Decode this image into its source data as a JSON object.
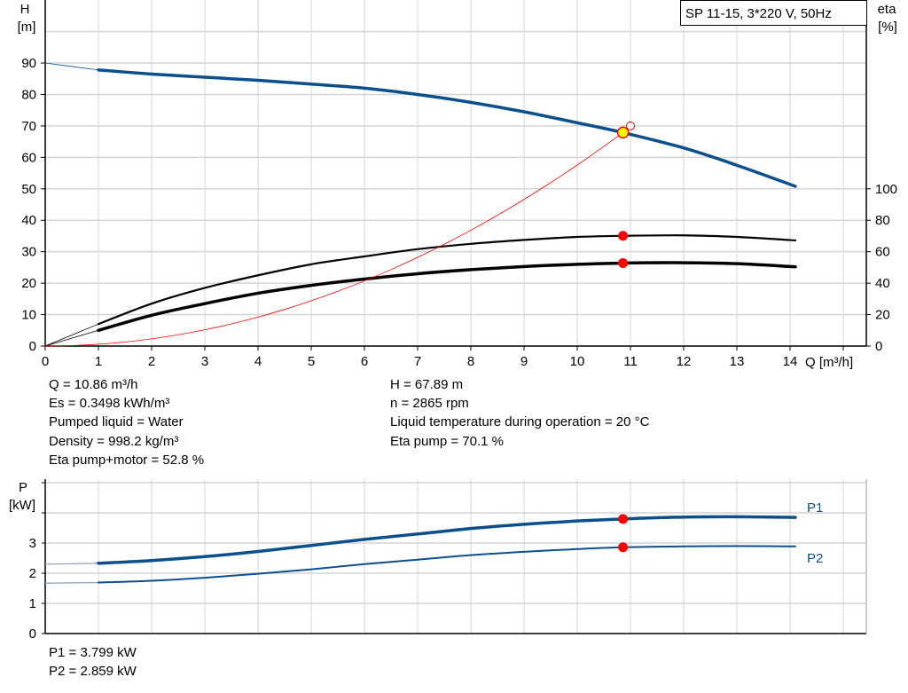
{
  "chart_data": [
    {
      "type": "line",
      "title": "SP 11-15, 3*220 V, 50Hz",
      "xlabel": "Q [m³/h]",
      "ylabel_left": [
        "H",
        "[m]"
      ],
      "ylabel_right": [
        "eta",
        "[%]"
      ],
      "xlim": [
        0,
        15.45
      ],
      "ylim_left": [
        0,
        110
      ],
      "ylim_right": [
        0,
        220
      ],
      "xticks": [
        "0",
        "1",
        "2",
        "3",
        "4",
        "5",
        "6",
        "7",
        "8",
        "9",
        "10",
        "11",
        "12",
        "13",
        "14"
      ],
      "yticks_left": [
        "0",
        "10",
        "20",
        "30",
        "40",
        "50",
        "60",
        "70",
        "80",
        "90"
      ],
      "yticks_right": [
        "0",
        "20",
        "40",
        "60",
        "80",
        "100"
      ],
      "grid": true,
      "series": [
        {
          "key": "H",
          "axis": "left",
          "color": "#0b4f8c",
          "x": [
            1,
            2,
            3,
            4,
            5,
            6,
            7,
            8,
            9,
            10,
            10.86,
            12,
            13,
            14.1
          ],
          "y": [
            87.8,
            86.5,
            85.5,
            84.5,
            83.3,
            82,
            80,
            77.5,
            74.5,
            71,
            67.89,
            63,
            57.5,
            50.8
          ],
          "extrapolated": {
            "x": [
              0,
              1
            ],
            "y": [
              90,
              87.8
            ]
          }
        },
        {
          "key": "eta_pump",
          "axis": "right",
          "color": "#000000",
          "x": [
            1,
            2,
            3,
            4,
            5,
            6,
            7,
            8,
            9,
            10,
            10.86,
            12,
            13,
            14.1
          ],
          "y": [
            14,
            27,
            37,
            45,
            52,
            57,
            61.6,
            65,
            67.5,
            69.4,
            70.1,
            70.4,
            69.4,
            67.2
          ],
          "extrapolated": {
            "x": [
              0,
              1
            ],
            "y": [
              0,
              14
            ]
          }
        },
        {
          "key": "eta_pump_motor",
          "axis": "right",
          "color": "#000000",
          "x": [
            1,
            2,
            3,
            4,
            5,
            6,
            7,
            8,
            9,
            10,
            10.86,
            12,
            13,
            14.1
          ],
          "y": [
            10,
            19.6,
            27,
            33.6,
            38.6,
            42.6,
            46,
            48.6,
            50.6,
            52,
            52.8,
            53,
            52.4,
            50.4
          ],
          "extrapolated": {
            "x": [
              0,
              1
            ],
            "y": [
              0,
              10
            ]
          }
        },
        {
          "key": "system_curve",
          "axis": "left",
          "color": "#ff0000",
          "type": "quadratic",
          "x": [
            0,
            10.86,
            11
          ],
          "y": [
            0,
            67.89,
            69.7
          ]
        }
      ],
      "duty_point": {
        "Q": 10.86,
        "H": 67.89,
        "eta_pump": 70.1,
        "eta_pump_motor": 52.8
      },
      "requested_point": {
        "Q": 11,
        "H": 70
      }
    },
    {
      "type": "line",
      "ylabel_left": [
        "P",
        "[kW]"
      ],
      "xlim": [
        0,
        15.45
      ],
      "ylim": [
        0,
        5.1
      ],
      "yticks": [
        "0",
        "1",
        "2",
        "3"
      ],
      "grid": true,
      "series": [
        {
          "name": "P1",
          "color": "#0b4f8c",
          "x": [
            1,
            2,
            3,
            4,
            5,
            6,
            7,
            8,
            9,
            10,
            10.86,
            12,
            13,
            14.1
          ],
          "y": [
            2.33,
            2.42,
            2.55,
            2.72,
            2.92,
            3.12,
            3.3,
            3.48,
            3.62,
            3.73,
            3.799,
            3.86,
            3.87,
            3.85
          ],
          "extrapolated": {
            "x": [
              0,
              1
            ],
            "y": [
              2.3,
              2.33
            ]
          }
        },
        {
          "name": "P2",
          "color": "#0b4f8c",
          "x": [
            1,
            2,
            3,
            4,
            5,
            6,
            7,
            8,
            9,
            10,
            10.86,
            12,
            13,
            14.1
          ],
          "y": [
            1.69,
            1.75,
            1.85,
            1.98,
            2.13,
            2.3,
            2.45,
            2.6,
            2.71,
            2.8,
            2.859,
            2.89,
            2.9,
            2.89
          ],
          "extrapolated": {
            "x": [
              0,
              1
            ],
            "y": [
              1.67,
              1.69
            ]
          }
        }
      ],
      "duty_point": {
        "Q": 10.86,
        "P1": 3.799,
        "P2": 2.859
      }
    }
  ],
  "info": {
    "left": [
      "Q = 10.86 m³/h",
      "Es = 0.3498 kWh/m³",
      "Pumped liquid = Water",
      "Density = 998.2 kg/m³",
      "Eta pump+motor = 52.8 %"
    ],
    "right": [
      "H = 67.89 m",
      "n = 2865 rpm",
      "Liquid temperature during operation = 20 °C",
      "Eta pump = 70.1 %"
    ],
    "power": [
      "P1 = 3.799 kW",
      "P2 = 2.859 kW"
    ]
  },
  "colors": {
    "curve_blue": "#0b4f8c",
    "duty_marker": "#ff0000",
    "operating_point": "#ffff00",
    "grid": "#d4d4d4"
  }
}
